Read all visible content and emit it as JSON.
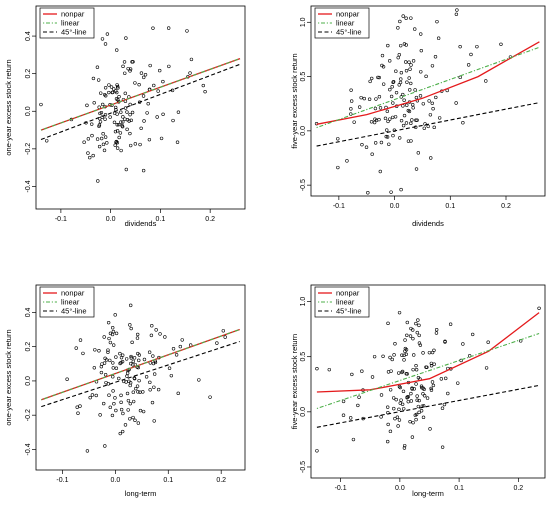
{
  "chart_data": [
    {
      "type": "scatter",
      "xlabel": "dividends",
      "ylabel": "one-year excess stock return",
      "xlim": [
        -0.15,
        0.27
      ],
      "ylim": [
        -0.52,
        0.56
      ],
      "xticks": [
        -0.1,
        0.0,
        0.1,
        0.2
      ],
      "xtick_labels": [
        "-0.1",
        "0.0",
        "0.1",
        "0.2"
      ],
      "yticks": [
        -0.4,
        -0.2,
        0.0,
        0.2,
        0.4
      ],
      "ytick_labels": [
        "-0.4",
        "-0.2",
        "0.0",
        "0.2",
        "0.4"
      ],
      "legend": {
        "position": "top-left",
        "entries": [
          "nonpar",
          "linear",
          "45°-line"
        ]
      },
      "series": [
        {
          "name": "nonpar",
          "kind": "line",
          "style": "solid",
          "color": "#e41a1c",
          "x": [
            -0.14,
            0.26
          ],
          "y": [
            -0.1,
            0.28
          ]
        },
        {
          "name": "linear",
          "kind": "line",
          "style": "dotdash",
          "color": "#4daf4a",
          "x": [
            -0.14,
            0.26
          ],
          "y": [
            -0.1,
            0.28
          ]
        },
        {
          "name": "45°-line",
          "kind": "line",
          "style": "dashed",
          "color": "#000000",
          "x": [
            -0.14,
            0.26
          ],
          "y": [
            -0.15,
            0.25
          ]
        }
      ],
      "seed": 11,
      "slope": 0.9,
      "intercept": 0.02,
      "noise": 0.16
    },
    {
      "type": "scatter",
      "xlabel": "dividends",
      "ylabel": "five-year excess stock return",
      "xlim": [
        -0.15,
        0.27
      ],
      "ylim": [
        -0.6,
        1.15
      ],
      "xticks": [
        -0.1,
        0.0,
        0.1,
        0.2
      ],
      "xtick_labels": [
        "-0.1",
        "0.0",
        "0.1",
        "0.2"
      ],
      "yticks": [
        -0.5,
        0.0,
        0.5,
        1.0
      ],
      "ytick_labels": [
        "-0.5",
        "0.0",
        "0.5",
        "1.0"
      ],
      "legend": {
        "position": "top-left",
        "entries": [
          "nonpar",
          "linear",
          "45°-line"
        ]
      },
      "series": [
        {
          "name": "nonpar",
          "kind": "line",
          "style": "solid",
          "color": "#e41a1c",
          "x": [
            -0.14,
            -0.05,
            0.05,
            0.15,
            0.26
          ],
          "y": [
            0.06,
            0.15,
            0.3,
            0.5,
            0.82
          ]
        },
        {
          "name": "linear",
          "kind": "line",
          "style": "dotdash",
          "color": "#4daf4a",
          "x": [
            -0.14,
            0.26
          ],
          "y": [
            0.03,
            0.77
          ]
        },
        {
          "name": "45°-line",
          "kind": "line",
          "style": "dashed",
          "color": "#000000",
          "x": [
            -0.14,
            0.26
          ],
          "y": [
            -0.14,
            0.26
          ]
        }
      ],
      "seed": 23,
      "slope": 1.8,
      "intercept": 0.25,
      "noise": 0.3
    },
    {
      "type": "scatter",
      "xlabel": "long-term",
      "ylabel": "one-year excess stock return",
      "xlim": [
        -0.15,
        0.245
      ],
      "ylim": [
        -0.52,
        0.56
      ],
      "xticks": [
        -0.1,
        0.0,
        0.1,
        0.2
      ],
      "xtick_labels": [
        "-0.1",
        "0.0",
        "0.1",
        "0.2"
      ],
      "yticks": [
        -0.4,
        -0.2,
        0.0,
        0.2,
        0.4
      ],
      "ytick_labels": [
        "-0.4",
        "-0.2",
        "0.0",
        "0.2",
        "0.4"
      ],
      "legend": {
        "position": "top-left",
        "entries": [
          "nonpar",
          "linear",
          "45°-line"
        ]
      },
      "series": [
        {
          "name": "nonpar",
          "kind": "line",
          "style": "solid",
          "color": "#e41a1c",
          "x": [
            -0.14,
            0.235
          ],
          "y": [
            -0.11,
            0.3
          ]
        },
        {
          "name": "linear",
          "kind": "line",
          "style": "dotdash",
          "color": "#4daf4a",
          "x": [
            -0.14,
            0.235
          ],
          "y": [
            -0.11,
            0.3
          ]
        },
        {
          "name": "45°-line",
          "kind": "line",
          "style": "dashed",
          "color": "#000000",
          "x": [
            -0.14,
            0.235
          ],
          "y": [
            -0.15,
            0.23
          ]
        }
      ],
      "seed": 37,
      "slope": 0.9,
      "intercept": 0.02,
      "noise": 0.16
    },
    {
      "type": "scatter",
      "xlabel": "long-term",
      "ylabel": "five-year excess stock return",
      "xlim": [
        -0.15,
        0.245
      ],
      "ylim": [
        -0.6,
        1.15
      ],
      "xticks": [
        -0.1,
        0.0,
        0.1,
        0.2
      ],
      "xtick_labels": [
        "-0.1",
        "0.0",
        "0.1",
        "0.2"
      ],
      "yticks": [
        -0.5,
        0.0,
        0.5,
        1.0
      ],
      "ytick_labels": [
        "-0.5",
        "0.0",
        "0.5",
        "1.0"
      ],
      "legend": {
        "position": "top-left",
        "entries": [
          "nonpar",
          "linear",
          "45°-line"
        ]
      },
      "series": [
        {
          "name": "nonpar",
          "kind": "line",
          "style": "solid",
          "color": "#e41a1c",
          "x": [
            -0.14,
            -0.05,
            0.05,
            0.15,
            0.235
          ],
          "y": [
            0.18,
            0.2,
            0.3,
            0.55,
            0.9
          ]
        },
        {
          "name": "linear",
          "kind": "line",
          "style": "dotdash",
          "color": "#4daf4a",
          "x": [
            -0.14,
            0.235
          ],
          "y": [
            0.03,
            0.71
          ]
        },
        {
          "name": "45°-line",
          "kind": "line",
          "style": "dashed",
          "color": "#000000",
          "x": [
            -0.14,
            0.235
          ],
          "y": [
            -0.14,
            0.24
          ]
        }
      ],
      "seed": 53,
      "slope": 1.8,
      "intercept": 0.25,
      "noise": 0.3
    }
  ]
}
